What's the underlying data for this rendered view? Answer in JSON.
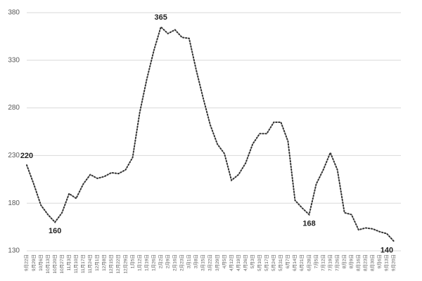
{
  "chart_data": {
    "type": "line",
    "categories": [
      "9月22日",
      "9月29日",
      "10月6日",
      "10月13日",
      "10月20日",
      "10月27日",
      "11月3日",
      "11月10日",
      "11月17日",
      "11月24日",
      "12月1日",
      "12月8日",
      "12月15日",
      "12月22日",
      "12月29日",
      "1月5日",
      "1月12日",
      "1月19日",
      "1月26日",
      "2月2日",
      "2月9日",
      "2月16日",
      "2月23日",
      "3月1日",
      "3月8日",
      "3月15日",
      "3月22日",
      "3月29日",
      "4月5日",
      "4月12日",
      "4月19日",
      "4月26日",
      "5月3日",
      "5月10日",
      "5月17日",
      "5月24日",
      "5月31日",
      "6月7日",
      "6月14日",
      "6月21日",
      "6月28日",
      "7月5日",
      "7月12日",
      "7月19日",
      "7月26日",
      "8月2日",
      "8月9日",
      "8月16日",
      "8月23日",
      "8月30日",
      "9月6日",
      "9月13日",
      "9月20日"
    ],
    "series": [
      {
        "color": "#333333",
        "values": [
          220,
          200,
          178,
          168,
          160,
          170,
          190,
          185,
          200,
          210,
          206,
          208,
          212,
          211,
          215,
          228,
          275,
          310,
          340,
          365,
          358,
          362,
          354,
          353,
          320,
          290,
          262,
          242,
          232,
          204,
          210,
          222,
          242,
          253,
          253,
          265,
          265,
          245,
          183,
          175,
          168,
          200,
          215,
          233,
          215,
          170,
          168,
          152,
          154,
          153,
          150,
          148,
          140
        ],
        "value_labels": [
          "220",
          null,
          null,
          null,
          "160",
          null,
          null,
          null,
          null,
          null,
          null,
          null,
          null,
          null,
          null,
          null,
          null,
          null,
          null,
          "365",
          null,
          null,
          null,
          null,
          null,
          null,
          null,
          null,
          null,
          null,
          null,
          null,
          null,
          null,
          null,
          null,
          null,
          null,
          null,
          null,
          "168",
          null,
          null,
          null,
          null,
          null,
          null,
          null,
          null,
          null,
          null,
          null,
          "140"
        ]
      }
    ],
    "ylim": [
      130,
      380
    ],
    "yticks": [
      130,
      180,
      230,
      280,
      330,
      380
    ],
    "grid": true
  }
}
